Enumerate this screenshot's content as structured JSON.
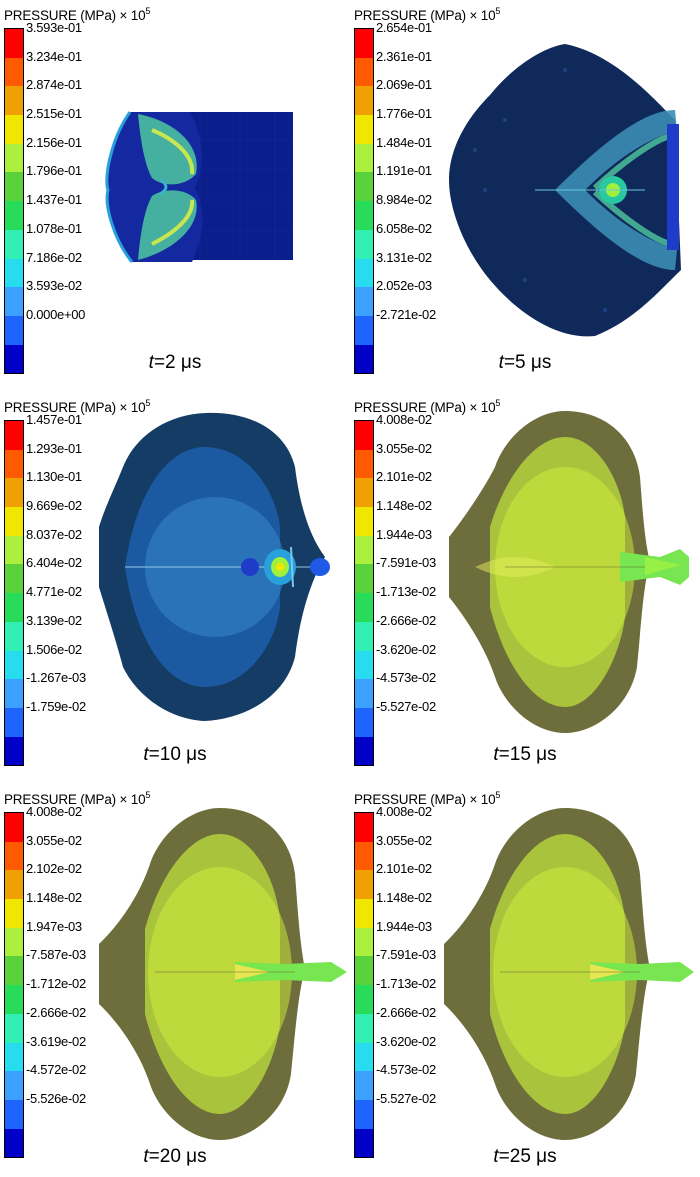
{
  "colors": [
    "#0000c8",
    "#1e64ff",
    "#3ca0ff",
    "#28dcf0",
    "#32f0b4",
    "#28dc5a",
    "#5ad23c",
    "#aaf03c",
    "#f0e600",
    "#f0a000",
    "#ff5a00",
    "#ff0000"
  ],
  "panels": [
    {
      "title": "PRESSURE (MPa) × 10",
      "exp": "5",
      "ticks": [
        "3.593e-01",
        "3.234e-01",
        "2.874e-01",
        "2.515e-01",
        "2.156e-01",
        "1.796e-01",
        "1.437e-01",
        "1.078e-01",
        "7.186e-02",
        "3.593e-02",
        "0.000e+00"
      ],
      "time_var": "t",
      "time_val": "=2 μs"
    },
    {
      "title": "PRESSURE (MPa) × 10",
      "exp": "5",
      "ticks": [
        "2.654e-01",
        "2.361e-01",
        "2.069e-01",
        "1.776e-01",
        "1.484e-01",
        "1.191e-01",
        "8.984e-02",
        "6.058e-02",
        "3.131e-02",
        "2.052e-03",
        "-2.721e-02"
      ],
      "time_var": "t",
      "time_val": "=5 μs"
    },
    {
      "title": "PRESSURE (MPa) × 10",
      "exp": "5",
      "ticks": [
        "1.457e-01",
        "1.293e-01",
        "1.130e-01",
        "9.669e-02",
        "8.037e-02",
        "6.404e-02",
        "4.771e-02",
        "3.139e-02",
        "1.506e-02",
        "-1.267e-03",
        "-1.759e-02"
      ],
      "time_var": "t",
      "time_val": "=10 μs"
    },
    {
      "title": "PRESSURE (MPa) × 10",
      "exp": "5",
      "ticks": [
        "4.008e-02",
        "3.055e-02",
        "2.101e-02",
        "1.148e-02",
        "1.944e-03",
        "-7.591e-03",
        "-1.713e-02",
        "-2.666e-02",
        "-3.620e-02",
        "-4.573e-02",
        "-5.527e-02"
      ],
      "time_var": "t",
      "time_val": "=15 μs"
    },
    {
      "title": "PRESSURE (MPa) × 10",
      "exp": "5",
      "ticks": [
        "4.008e-02",
        "3.055e-02",
        "2.102e-02",
        "1.148e-02",
        "1.947e-03",
        "-7.587e-03",
        "-1.712e-02",
        "-2.666e-02",
        "-3.619e-02",
        "-4.572e-02",
        "-5.526e-02"
      ],
      "time_var": "t",
      "time_val": "=20 μs"
    },
    {
      "title": "PRESSURE (MPa) × 10",
      "exp": "5",
      "ticks": [
        "4.008e-02",
        "3.055e-02",
        "2.101e-02",
        "1.148e-02",
        "1.944e-03",
        "-7.591e-03",
        "-1.713e-02",
        "-2.666e-02",
        "-3.620e-02",
        "-4.573e-02",
        "-5.527e-02"
      ],
      "time_var": "t",
      "time_val": "=25 μs"
    }
  ]
}
